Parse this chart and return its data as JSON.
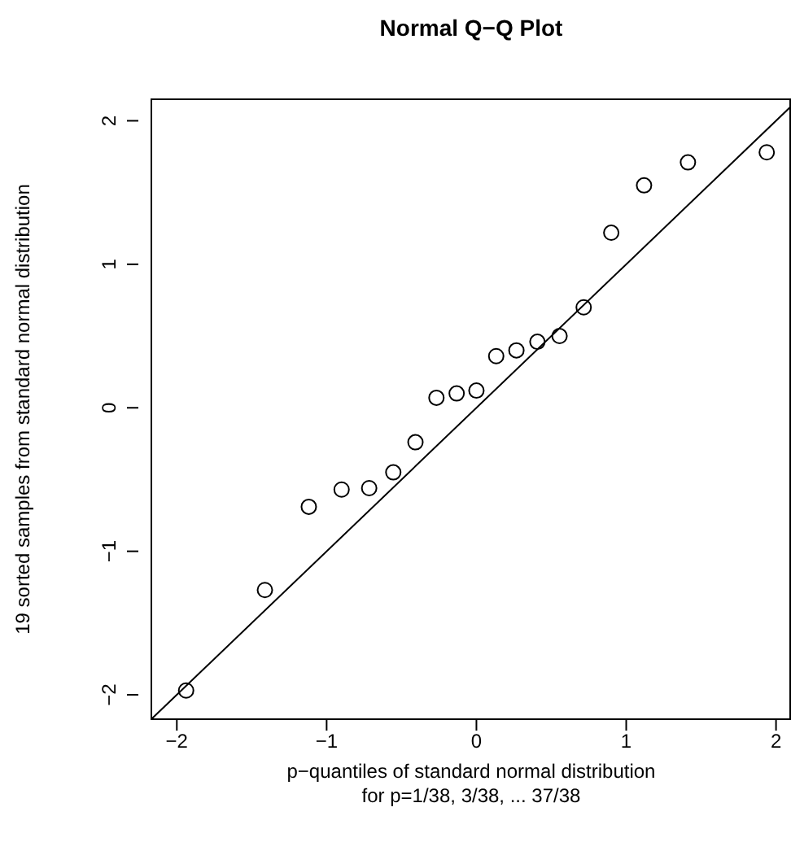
{
  "chart_data": {
    "type": "scatter",
    "title": "Normal Q−Q Plot",
    "xlabel": "p−quantiles of standard normal distribution\nfor p=1/38, 3/38, ... 37/38",
    "ylabel": "19 sorted samples from standard normal distribution",
    "series": [
      {
        "color": "#000000",
        "marker": "circle",
        "x": [
          -1.938,
          -1.412,
          -1.119,
          -0.9,
          -0.716,
          -0.555,
          -0.407,
          -0.267,
          -0.132,
          0,
          0.132,
          0.267,
          0.407,
          0.555,
          0.716,
          0.9,
          1.119,
          1.412,
          1.938
        ],
        "values": [
          -1.97,
          -1.27,
          -0.69,
          -0.57,
          -0.56,
          -0.45,
          -0.24,
          0.07,
          0.1,
          0.12,
          0.36,
          0.4,
          0.46,
          0.5,
          0.7,
          1.22,
          1.55,
          1.71,
          1.78
        ]
      },
      {
        "type": "line",
        "color": "#000000",
        "marker": "none",
        "x": [
          -2.17,
          2.1
        ],
        "values": [
          -2.17,
          2.1
        ]
      }
    ],
    "xlim": [
      -2.17,
      2.1
    ],
    "ylim": [
      -2.17,
      2.15
    ],
    "xticks": [
      -2,
      -1,
      0,
      1,
      2
    ],
    "yticks": [
      -2,
      -1,
      0,
      1,
      2
    ],
    "grid": false,
    "legend": false
  }
}
